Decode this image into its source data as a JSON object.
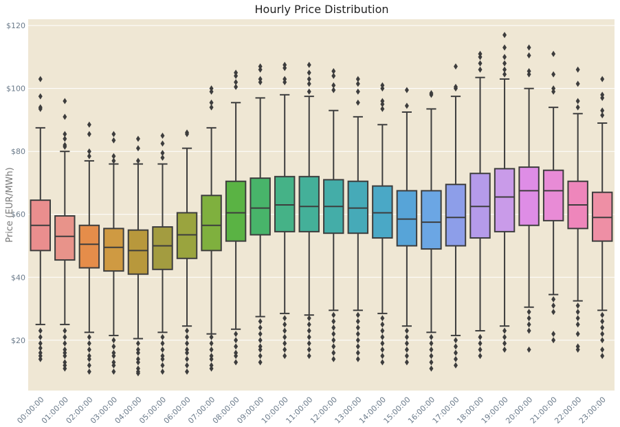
{
  "chart_data": {
    "type": "box",
    "title": "Hourly Price Distribution",
    "xlabel": "",
    "ylabel": "Price (EUR/MWh)",
    "ylim": [
      4,
      122
    ],
    "yticks": [
      20,
      40,
      60,
      80,
      100,
      120
    ],
    "ytick_labels": [
      "$20",
      "$40",
      "$60",
      "$80",
      "$100",
      "$120"
    ],
    "grid": true,
    "background": "#efe7d4",
    "categories": [
      "00:00:00",
      "01:00:00",
      "02:00:00",
      "03:00:00",
      "04:00:00",
      "05:00:00",
      "06:00:00",
      "07:00:00",
      "08:00:00",
      "09:00:00",
      "10:00:00",
      "11:00:00",
      "12:00:00",
      "13:00:00",
      "14:00:00",
      "15:00:00",
      "16:00:00",
      "17:00:00",
      "18:00:00",
      "19:00:00",
      "20:00:00",
      "21:00:00",
      "22:00:00",
      "23:00:00"
    ],
    "colors": [
      "#ea8e8e",
      "#e8938a",
      "#e58d4a",
      "#cf9a42",
      "#b8983c",
      "#a39c40",
      "#9aa43e",
      "#7fb03e",
      "#5ab344",
      "#48b46a",
      "#45b287",
      "#44b099",
      "#44ada8",
      "#46aab8",
      "#4aa8c6",
      "#57a4d8",
      "#6ba6e4",
      "#8d9ee9",
      "#b59bea",
      "#c99be9",
      "#de8de6",
      "#e88bd6",
      "#ee86bb",
      "#ee8fa5"
    ],
    "boxes": [
      {
        "whislo": 25,
        "q1": 48.5,
        "med": 56.5,
        "q3": 64.5,
        "whishi": 87.5,
        "fliers": [
          103,
          97.5,
          94,
          93.5,
          23,
          21,
          19,
          17.5,
          16,
          15,
          14
        ]
      },
      {
        "whislo": 25,
        "q1": 45.5,
        "med": 53,
        "q3": 59.5,
        "whishi": 80,
        "fliers": [
          96,
          91,
          85.5,
          84,
          82,
          81.5,
          23,
          21,
          19,
          17,
          16,
          15,
          13,
          12,
          11
        ]
      },
      {
        "whislo": 22.5,
        "q1": 43,
        "med": 50.5,
        "q3": 56.5,
        "whishi": 77,
        "fliers": [
          88.5,
          85.5,
          80,
          78.5,
          21,
          19,
          17,
          15,
          14,
          12,
          10
        ]
      },
      {
        "whislo": 21.5,
        "q1": 42,
        "med": 49.5,
        "q3": 55.5,
        "whishi": 76,
        "fliers": [
          85.5,
          83.5,
          78.5,
          77,
          20,
          18,
          16,
          15,
          13,
          12,
          10
        ]
      },
      {
        "whislo": 20.5,
        "q1": 41,
        "med": 48.5,
        "q3": 55,
        "whishi": 76,
        "fliers": [
          84,
          81,
          77,
          19,
          17,
          16,
          14,
          13,
          11,
          10,
          9.5
        ]
      },
      {
        "whislo": 22.5,
        "q1": 42.5,
        "med": 50,
        "q3": 56,
        "whishi": 76,
        "fliers": [
          85,
          82.5,
          79.5,
          78,
          21,
          19,
          17,
          15,
          14,
          12,
          10
        ]
      },
      {
        "whislo": 24.5,
        "q1": 46,
        "med": 53.5,
        "q3": 60.5,
        "whishi": 81,
        "fliers": [
          86,
          85.5,
          23,
          21,
          19,
          17,
          16,
          14,
          12,
          10
        ]
      },
      {
        "whislo": 22,
        "q1": 48.5,
        "med": 56.5,
        "q3": 66,
        "whishi": 87.5,
        "fliers": [
          100,
          99,
          95.5,
          94,
          21,
          19,
          17,
          15,
          14,
          12,
          11
        ]
      },
      {
        "whislo": 23.5,
        "q1": 51.5,
        "med": 60.5,
        "q3": 70.5,
        "whishi": 95.5,
        "fliers": [
          105,
          104,
          102,
          100.5,
          22,
          20,
          18,
          16,
          15,
          13
        ]
      },
      {
        "whislo": 27.5,
        "q1": 53.5,
        "med": 62,
        "q3": 71.5,
        "whishi": 97,
        "fliers": [
          107,
          106,
          103,
          102,
          26,
          24,
          22,
          20,
          18,
          17,
          15,
          13
        ]
      },
      {
        "whislo": 28.5,
        "q1": 54.5,
        "med": 63,
        "q3": 72,
        "whishi": 98,
        "fliers": [
          107.5,
          106.5,
          103,
          102,
          27,
          25,
          23,
          21,
          19,
          17,
          15
        ]
      },
      {
        "whislo": 28,
        "q1": 54.5,
        "med": 62.5,
        "q3": 72,
        "whishi": 97.5,
        "fliers": [
          107.5,
          105,
          103,
          101.5,
          99,
          27,
          25,
          23,
          21,
          19,
          17,
          15
        ]
      },
      {
        "whislo": 29.5,
        "q1": 54,
        "med": 62.5,
        "q3": 71,
        "whishi": 93,
        "fliers": [
          105.5,
          104,
          101,
          99.5,
          28,
          26,
          24,
          22,
          20,
          18,
          16,
          14
        ]
      },
      {
        "whislo": 29.5,
        "q1": 54,
        "med": 62,
        "q3": 70.5,
        "whishi": 91,
        "fliers": [
          103,
          101.5,
          99,
          95.5,
          28,
          26,
          24,
          22,
          20,
          18,
          16,
          14
        ]
      },
      {
        "whislo": 28.5,
        "q1": 52.5,
        "med": 60.5,
        "q3": 69,
        "whishi": 88.5,
        "fliers": [
          101,
          100,
          96,
          95,
          93.5,
          27,
          25,
          23,
          21,
          19,
          17,
          15,
          13
        ]
      },
      {
        "whislo": 24.5,
        "q1": 50,
        "med": 58.5,
        "q3": 67.5,
        "whishi": 92.5,
        "fliers": [
          99.5,
          94.5,
          23,
          21,
          19,
          17,
          15,
          13
        ]
      },
      {
        "whislo": 22.5,
        "q1": 49,
        "med": 57.5,
        "q3": 67.5,
        "whishi": 93.5,
        "fliers": [
          98.5,
          98,
          21,
          19,
          17,
          15,
          13,
          11
        ]
      },
      {
        "whislo": 21.5,
        "q1": 50,
        "med": 59,
        "q3": 69.5,
        "whishi": 97.5,
        "fliers": [
          107,
          100.5,
          100,
          20,
          18,
          16,
          14,
          12
        ]
      },
      {
        "whislo": 23,
        "q1": 52.5,
        "med": 62.5,
        "q3": 73,
        "whishi": 103.5,
        "fliers": [
          111,
          110,
          108,
          106,
          21,
          19,
          17,
          15
        ]
      },
      {
        "whislo": 24.5,
        "q1": 54.5,
        "med": 65.5,
        "q3": 74.5,
        "whishi": 103,
        "fliers": [
          117,
          113,
          110,
          108,
          106,
          104.5,
          23,
          21,
          19,
          17
        ]
      },
      {
        "whislo": 30.5,
        "q1": 56.5,
        "med": 67.5,
        "q3": 75,
        "whishi": 100,
        "fliers": [
          113,
          110.5,
          105.5,
          104.5,
          29,
          27,
          25,
          23,
          17
        ]
      },
      {
        "whislo": 34.5,
        "q1": 58,
        "med": 67.5,
        "q3": 74,
        "whishi": 94,
        "fliers": [
          111,
          104.5,
          100,
          99,
          33,
          31,
          29,
          22,
          20
        ]
      },
      {
        "whislo": 32.5,
        "q1": 55.5,
        "med": 63,
        "q3": 70.5,
        "whishi": 92,
        "fliers": [
          106,
          101.5,
          96,
          94,
          31,
          29,
          27,
          25,
          22,
          18,
          17
        ]
      },
      {
        "whislo": 29.5,
        "q1": 51.5,
        "med": 59,
        "q3": 67,
        "whishi": 89,
        "fliers": [
          103,
          98,
          97,
          93,
          91.5,
          28,
          26,
          24,
          22,
          20,
          17,
          15
        ]
      }
    ]
  }
}
